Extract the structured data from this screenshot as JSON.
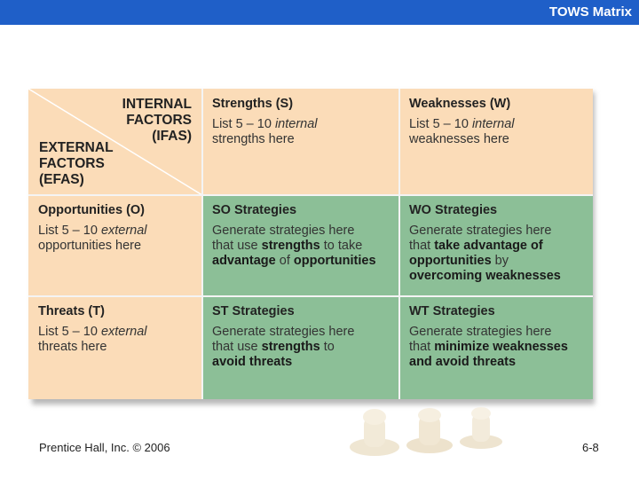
{
  "header": {
    "title": "TOWS Matrix"
  },
  "matrix": {
    "corner": {
      "internal_lines": [
        "INTERNAL",
        "FACTORS",
        "(IFAS)"
      ],
      "external_lines": [
        "EXTERNAL",
        "FACTORS",
        "(EFAS)"
      ]
    },
    "strengths": {
      "heading": "Strengths (S)",
      "l1a": "List 5 – 10 ",
      "l1b": "internal",
      "l2": "strengths here"
    },
    "weaknesses": {
      "heading": "Weaknesses (W)",
      "l1a": "List 5 – 10 ",
      "l1b": "internal",
      "l2": "weaknesses here"
    },
    "opportunities": {
      "heading": "Opportunities (O)",
      "l1a": "List 5 – 10 ",
      "l1b": "external",
      "l2": "opportunities here"
    },
    "threats": {
      "heading": "Threats (T)",
      "l1a": "List 5 – 10 ",
      "l1b": "external",
      "l2": "threats here"
    },
    "so": {
      "heading": "SO Strategies",
      "l1": "Generate strategies here",
      "l2a": "that use ",
      "l2b": "strengths",
      "l2c": " to take",
      "l3a": "advantage",
      "l3b": " of ",
      "l3c": "opportunities"
    },
    "wo": {
      "heading": "WO Strategies",
      "l1": "Generate strategies here",
      "l2a": "that ",
      "l2b": "take advantage of",
      "l3a": "opportunities",
      "l3b": " by",
      "l4": "overcoming weaknesses"
    },
    "st": {
      "heading": "ST Strategies",
      "l1": "Generate strategies here",
      "l2a": "that use ",
      "l2b": "strengths",
      "l2c": " to",
      "l3": "avoid threats"
    },
    "wt": {
      "heading": "WT Strategies",
      "l1": "Generate strategies here",
      "l2a": "that ",
      "l2b": "minimize weaknesses",
      "l3": "and avoid threats"
    }
  },
  "footer": {
    "copyright": "Prentice Hall, Inc. © 2006",
    "page": "6-8"
  },
  "colors": {
    "header_bar": "#1f5fc8",
    "peach": "#fbdcb8",
    "green": "#8cbf97"
  }
}
